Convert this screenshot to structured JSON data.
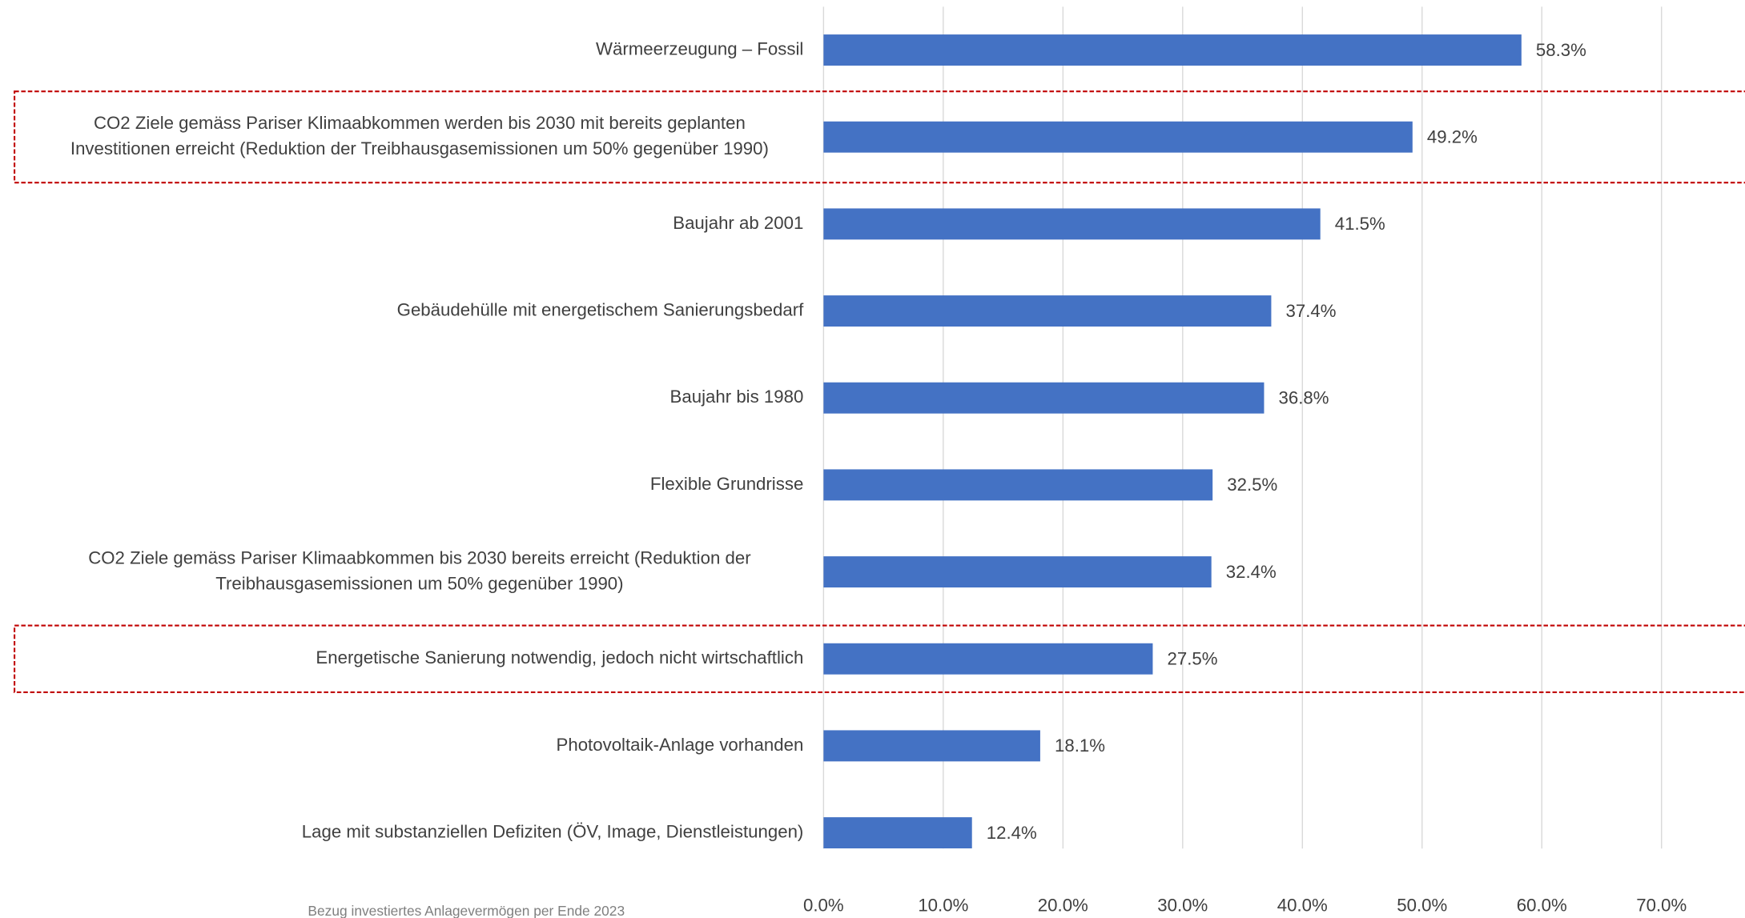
{
  "chart_data": {
    "type": "barh",
    "categories": [
      [
        "Wärmeerzeugung – Fossil"
      ],
      [
        "CO2 Ziele gemäss Pariser Klimaabkommen werden bis 2030 mit bereits geplanten",
        "Investitionen erreicht (Reduktion der Treibhausgasemissionen um 50% gegenüber 1990)"
      ],
      [
        "Baujahr ab 2001"
      ],
      [
        "Gebäudehülle mit energetischem Sanierungsbedarf"
      ],
      [
        "Baujahr bis 1980"
      ],
      [
        "Flexible Grundrisse"
      ],
      [
        "CO2 Ziele gemäss Pariser Klimaabkommen bis 2030 bereits erreicht (Reduktion der",
        "Treibhausgasemissionen um 50% gegenüber 1990)"
      ],
      [
        "Energetische Sanierung notwendig, jedoch nicht wirtschaftlich"
      ],
      [
        "Photovoltaik-Anlage vorhanden"
      ],
      [
        "Lage mit substanziellen Defiziten (ÖV, Image, Dienstleistungen)"
      ]
    ],
    "values": [
      58.3,
      49.2,
      41.5,
      37.4,
      36.8,
      32.5,
      32.4,
      27.5,
      18.1,
      12.4
    ],
    "value_labels": [
      "58.3%",
      "49.2%",
      "41.5%",
      "37.4%",
      "36.8%",
      "32.5%",
      "32.4%",
      "27.5%",
      "18.1%",
      "12.4%"
    ],
    "color": "#4472c4",
    "xlim": [
      0,
      70
    ],
    "xticks": [
      {
        "value": 0,
        "label": "0.0%"
      },
      {
        "value": 10,
        "label": "10.0%"
      },
      {
        "value": 20,
        "label": "20.0%"
      },
      {
        "value": 30,
        "label": "30.0%"
      },
      {
        "value": 40,
        "label": "40.0%"
      },
      {
        "value": 50,
        "label": "50.0%"
      },
      {
        "value": 60,
        "label": "60.0%"
      },
      {
        "value": 70,
        "label": "70.0%"
      }
    ],
    "grid": true,
    "highlighted": [
      1,
      7
    ],
    "highlight_color": "#c00000",
    "footnote": "Bezug investiertes Anlagevermögen per Ende 2023"
  }
}
